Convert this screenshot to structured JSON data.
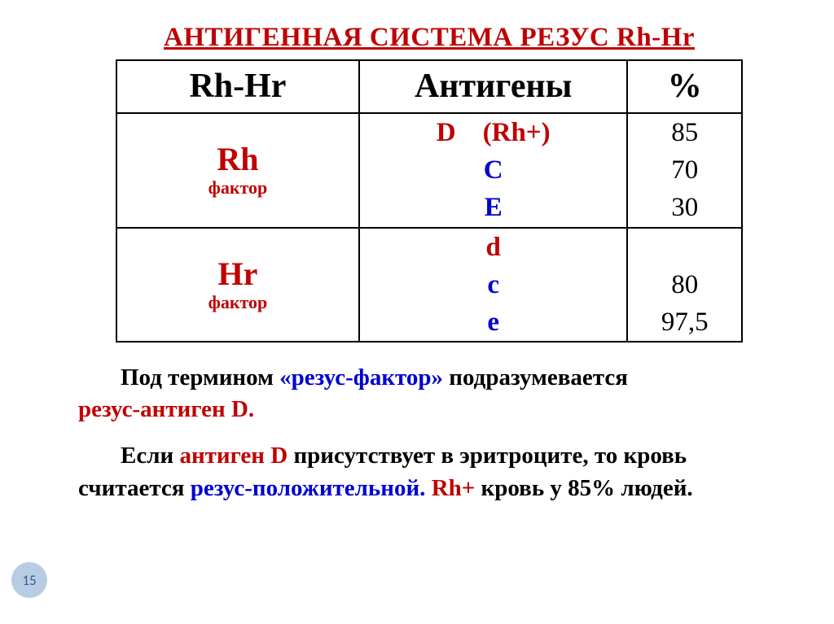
{
  "title": "АНТИГЕННАЯ СИСТЕМА РЕЗУС Rh-Hr",
  "table": {
    "headers": {
      "col1": "Rh-Hr",
      "col2": "Антигены",
      "col3": "%"
    },
    "row1": {
      "label_big": "Rh",
      "label_small": "фактор",
      "antigens": [
        {
          "text": "D",
          "color": "#c00000",
          "suffix": "(Rh+)",
          "suffix_color": "#c00000"
        },
        {
          "text": "C",
          "color": "#0000d0"
        },
        {
          "text": "E",
          "color": "#0000d0"
        }
      ],
      "percents": [
        "85",
        "70",
        "30"
      ]
    },
    "row2": {
      "label_big": "Hr",
      "label_small": "фактор",
      "antigens": [
        {
          "text": "d",
          "color": "#c00000"
        },
        {
          "text": "c",
          "color": "#0000d0"
        },
        {
          "text": "e",
          "color": "#0000d0"
        }
      ],
      "percents": [
        "",
        "80",
        "97,5"
      ]
    }
  },
  "para1": {
    "lead": "Под термином ",
    "term": "«резус-фактор»",
    "mid": " подразумевается ",
    "tail": "резус-антиген D."
  },
  "para2": {
    "lead": "Если ",
    "term": "антиген D",
    "mid1": " присутствует в эритроците, то кровь считается ",
    "pos": "резус-положительной.",
    "mid2": "   ",
    "rh": "Rh+",
    "end": "  кровь у 85% людей."
  },
  "page_number": "15",
  "colors": {
    "accent_red": "#c00000",
    "accent_blue": "#0000d0",
    "text": "#000000",
    "badge_bg": "#b8cde4",
    "badge_fg": "#3a5f8a"
  }
}
